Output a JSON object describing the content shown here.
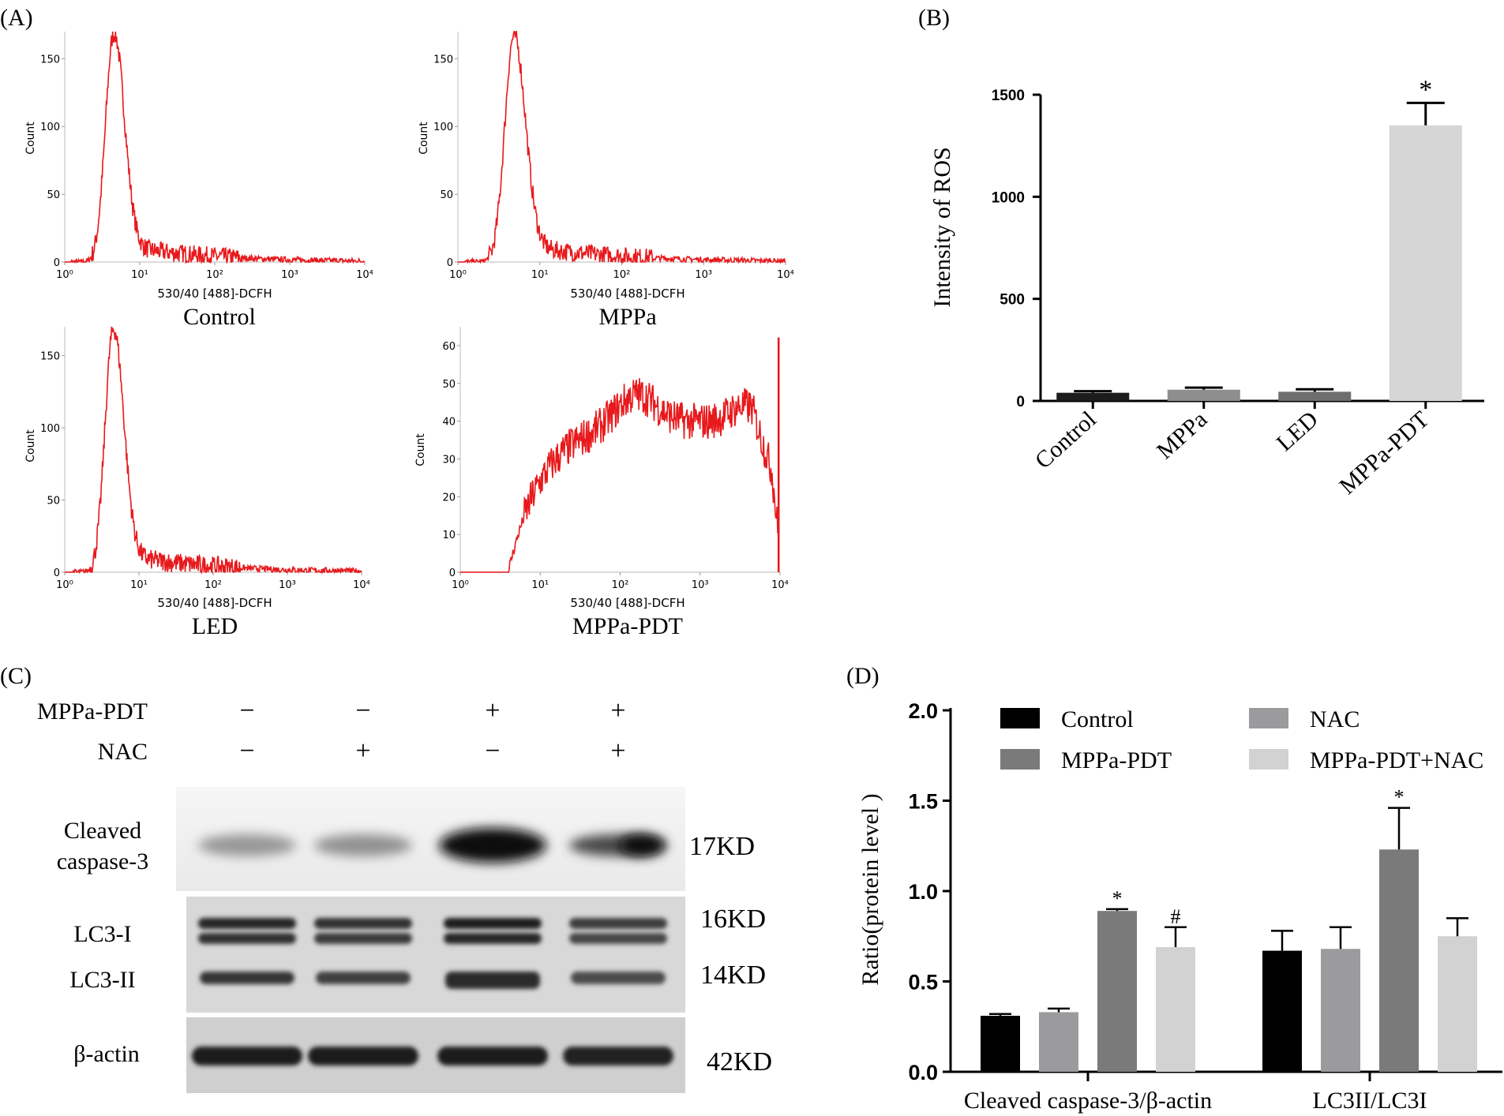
{
  "chart_data": [
    {
      "id": "A",
      "type": "histogram",
      "panel_label": "(A)",
      "x_scale": "log",
      "xlim": [
        1,
        10000
      ],
      "x_tick_labels": [
        "10⁰",
        "10¹",
        "10²",
        "10³",
        "10⁴"
      ],
      "xlabel": "530/40 [488]-DCFH",
      "ylabel": "Count",
      "color": "#e8191c",
      "plots": [
        {
          "key": "control",
          "title": "Control",
          "ylim": [
            0,
            170
          ],
          "y_ticks": [
            0,
            50,
            100,
            150
          ],
          "series": {
            "peak_x": 4.5,
            "peak_count": 168,
            "width_left": 0.11,
            "width_right": 0.14,
            "tail": 14,
            "tail_decay": 0.9,
            "end_x": 10000,
            "noise": 7,
            "spike": false
          }
        },
        {
          "key": "mppa",
          "title": "MPPa",
          "ylim": [
            0,
            170
          ],
          "y_ticks": [
            0,
            50,
            100,
            150
          ],
          "series": {
            "peak_x": 4.8,
            "peak_count": 166,
            "width_left": 0.11,
            "width_right": 0.14,
            "tail": 14,
            "tail_decay": 0.9,
            "end_x": 10000,
            "noise": 7,
            "spike": false
          }
        },
        {
          "key": "led",
          "title": "LED",
          "ylim": [
            0,
            170
          ],
          "y_ticks": [
            0,
            50,
            100,
            150
          ],
          "series": {
            "peak_x": 4.5,
            "peak_count": 168,
            "width_left": 0.11,
            "width_right": 0.14,
            "tail": 14,
            "tail_decay": 0.9,
            "end_x": 10000,
            "noise": 7,
            "spike": false
          }
        },
        {
          "key": "mppa_pdt",
          "title": "MPPa-PDT",
          "ylim": [
            0,
            65
          ],
          "y_ticks": [
            0,
            10,
            20,
            30,
            40,
            50,
            60
          ],
          "series": {
            "type": "broad",
            "end_x": 9500,
            "noise": 5,
            "spike": true,
            "spike_height": 62
          }
        }
      ]
    },
    {
      "id": "B",
      "type": "bar",
      "panel_label": "(B)",
      "title": "",
      "xlabel": "",
      "ylabel": "Intensity of ROS",
      "ylim": [
        0,
        1500
      ],
      "y_ticks": [
        0,
        500,
        1000,
        1500
      ],
      "categories": [
        "Control",
        "MPPa",
        "LED",
        "MPPa-PDT"
      ],
      "values": [
        40,
        55,
        45,
        1350
      ],
      "errors": [
        8,
        10,
        12,
        110
      ],
      "colors": [
        "#1c1c1c",
        "#8e8e8e",
        "#6e6e6e",
        "#d6d6d6"
      ],
      "annotations": [
        "",
        "",
        "",
        "*"
      ]
    },
    {
      "id": "D",
      "type": "bar",
      "panel_label": "(D)",
      "title": "",
      "xlabel": "",
      "ylabel": "Ratio(protein level )",
      "ylim": [
        0,
        2.0
      ],
      "y_ticks": [
        0.0,
        0.5,
        1.0,
        1.5,
        2.0
      ],
      "y_tick_labels": [
        "0.0",
        "0.5",
        "1.0",
        "1.5",
        "2.0"
      ],
      "categories": [
        "Cleaved caspase-3/β-actin",
        "LC3II/LC3I"
      ],
      "series": [
        {
          "name": "Control",
          "color": "#000000",
          "values": [
            0.31,
            0.67
          ],
          "errors": [
            0.01,
            0.11
          ],
          "annotations": [
            "",
            ""
          ]
        },
        {
          "name": "NAC",
          "color": "#9b9b9e",
          "values": [
            0.33,
            0.68
          ],
          "errors": [
            0.02,
            0.12
          ],
          "annotations": [
            "",
            ""
          ]
        },
        {
          "name": "MPPa-PDT",
          "color": "#7a7a7a",
          "values": [
            0.89,
            1.23
          ],
          "errors": [
            0.01,
            0.23
          ],
          "annotations": [
            "*",
            "*"
          ]
        },
        {
          "name": "MPPa-PDT+NAC",
          "color": "#d2d2d2",
          "values": [
            0.69,
            0.75
          ],
          "errors": [
            0.11,
            0.1
          ],
          "annotations": [
            "#",
            ""
          ]
        }
      ],
      "legend_order": [
        "Control",
        "NAC",
        "MPPa-PDT",
        "MPPa-PDT+NAC"
      ],
      "legend_position": "top"
    }
  ],
  "blot": {
    "panel_label": "(C)",
    "treatments": [
      {
        "label": "MPPa-PDT",
        "signs": [
          "−",
          "−",
          "+",
          "+"
        ]
      },
      {
        "label": "NAC",
        "signs": [
          "−",
          "+",
          "−",
          "+"
        ]
      }
    ],
    "bands": [
      {
        "labels": [
          "Cleaved",
          "caspase-3"
        ],
        "sizes": [
          "17KD"
        ],
        "intensity": [
          0.35,
          0.38,
          0.95,
          0.7
        ]
      },
      {
        "labels": [
          "LC3-I",
          "LC3-II"
        ],
        "sizes": [
          "16KD",
          "14KD"
        ],
        "intensity": [
          0.85,
          0.8,
          0.9,
          0.75
        ]
      },
      {
        "labels": [
          "β-actin"
        ],
        "sizes": [
          "42KD"
        ],
        "intensity": [
          0.9,
          0.9,
          0.9,
          0.88
        ]
      }
    ]
  }
}
